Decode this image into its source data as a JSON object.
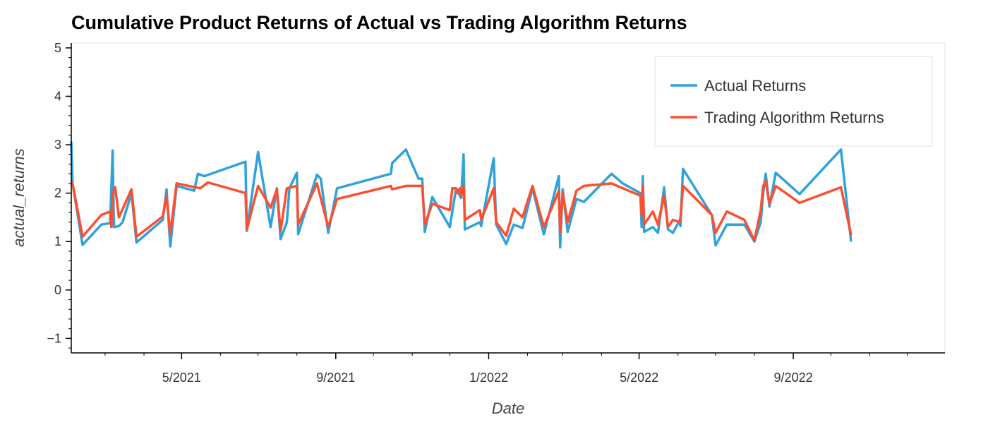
{
  "chart_data": {
    "type": "line",
    "title": "Cumulative Product Returns of Actual vs Trading Algorithm Returns",
    "xlabel": "Date",
    "ylabel": "actual_returns",
    "ylim": [
      -1.3,
      5.1
    ],
    "yticks": [
      -1,
      0,
      1,
      2,
      3,
      4,
      5
    ],
    "xlim": [
      "2021-02-02",
      "2022-12-31"
    ],
    "xticks": [
      {
        "date": "2021-05-01",
        "label": "5/2021"
      },
      {
        "date": "2021-09-01",
        "label": "9/2021"
      },
      {
        "date": "2022-01-01",
        "label": "1/2022"
      },
      {
        "date": "2022-05-01",
        "label": "5/2022"
      },
      {
        "date": "2022-09-01",
        "label": "9/2022"
      }
    ],
    "grid": false,
    "legend_position": "top-right",
    "series": [
      {
        "name": "Actual Returns",
        "color": "#30a2da",
        "points": [
          [
            "2021-02-02",
            3.05
          ],
          [
            "2021-02-03",
            2.2
          ],
          [
            "2021-02-11",
            0.93
          ],
          [
            "2021-02-26",
            1.35
          ],
          [
            "2021-03-05",
            1.38
          ],
          [
            "2021-03-07",
            2.88
          ],
          [
            "2021-03-08",
            1.3
          ],
          [
            "2021-03-12",
            1.32
          ],
          [
            "2021-03-15",
            1.4
          ],
          [
            "2021-03-22",
            2.0
          ],
          [
            "2021-03-26",
            0.98
          ],
          [
            "2021-04-16",
            1.45
          ],
          [
            "2021-04-19",
            2.08
          ],
          [
            "2021-04-22",
            0.9
          ],
          [
            "2021-04-27",
            2.15
          ],
          [
            "2021-05-11",
            2.05
          ],
          [
            "2021-05-14",
            2.4
          ],
          [
            "2021-05-19",
            2.35
          ],
          [
            "2021-06-21",
            2.65
          ],
          [
            "2021-06-22",
            1.22
          ],
          [
            "2021-07-01",
            2.85
          ],
          [
            "2021-07-11",
            1.3
          ],
          [
            "2021-07-16",
            2.1
          ],
          [
            "2021-07-19",
            1.05
          ],
          [
            "2021-07-24",
            1.4
          ],
          [
            "2021-07-26",
            2.1
          ],
          [
            "2021-08-01",
            2.42
          ],
          [
            "2021-08-02",
            1.15
          ],
          [
            "2021-08-17",
            2.38
          ],
          [
            "2021-08-20",
            2.3
          ],
          [
            "2021-08-26",
            1.18
          ],
          [
            "2021-09-02",
            2.1
          ],
          [
            "2021-10-15",
            2.4
          ],
          [
            "2021-10-16",
            2.62
          ],
          [
            "2021-10-27",
            2.9
          ],
          [
            "2021-11-06",
            2.3
          ],
          [
            "2021-11-09",
            2.3
          ],
          [
            "2021-11-11",
            1.2
          ],
          [
            "2021-11-17",
            1.92
          ],
          [
            "2021-12-01",
            1.3
          ],
          [
            "2021-12-06",
            2.1
          ],
          [
            "2021-12-09",
            1.95
          ],
          [
            "2021-12-10",
            1.9
          ],
          [
            "2021-12-12",
            2.8
          ],
          [
            "2021-12-13",
            1.25
          ],
          [
            "2021-12-25",
            1.4
          ],
          [
            "2021-12-26",
            1.32
          ],
          [
            "2022-01-05",
            2.72
          ],
          [
            "2022-01-07",
            1.35
          ],
          [
            "2022-01-15",
            0.95
          ],
          [
            "2022-01-21",
            1.35
          ],
          [
            "2022-01-28",
            1.28
          ],
          [
            "2022-02-05",
            2.1
          ],
          [
            "2022-02-14",
            1.15
          ],
          [
            "2022-02-26",
            2.35
          ],
          [
            "2022-02-27",
            0.88
          ],
          [
            "2022-03-01",
            2.08
          ],
          [
            "2022-03-05",
            1.2
          ],
          [
            "2022-03-12",
            1.88
          ],
          [
            "2022-03-18",
            1.82
          ],
          [
            "2022-04-09",
            2.4
          ],
          [
            "2022-04-18",
            2.2
          ],
          [
            "2022-05-02",
            2.0
          ],
          [
            "2022-05-03",
            1.3
          ],
          [
            "2022-05-04",
            2.35
          ],
          [
            "2022-05-05",
            1.2
          ],
          [
            "2022-05-12",
            1.3
          ],
          [
            "2022-05-16",
            1.18
          ],
          [
            "2022-05-21",
            2.12
          ],
          [
            "2022-05-24",
            1.25
          ],
          [
            "2022-05-28",
            1.18
          ],
          [
            "2022-06-02",
            1.42
          ],
          [
            "2022-06-03",
            1.32
          ],
          [
            "2022-06-05",
            2.5
          ],
          [
            "2022-06-28",
            1.55
          ],
          [
            "2022-07-01",
            0.92
          ],
          [
            "2022-07-10",
            1.35
          ],
          [
            "2022-07-24",
            1.35
          ],
          [
            "2022-08-01",
            1.0
          ],
          [
            "2022-08-06",
            1.4
          ],
          [
            "2022-08-08",
            2.0
          ],
          [
            "2022-08-10",
            2.4
          ],
          [
            "2022-08-13",
            1.72
          ],
          [
            "2022-08-18",
            2.42
          ],
          [
            "2022-09-06",
            1.98
          ],
          [
            "2022-10-09",
            2.9
          ],
          [
            "2022-10-17",
            1.02
          ]
        ]
      },
      {
        "name": "Trading Algorithm Returns",
        "color": "#fc4f30",
        "points": [
          [
            "2021-02-03",
            2.2
          ],
          [
            "2021-02-11",
            1.1
          ],
          [
            "2021-02-26",
            1.55
          ],
          [
            "2021-03-05",
            1.62
          ],
          [
            "2021-03-06",
            1.3
          ],
          [
            "2021-03-07",
            1.98
          ],
          [
            "2021-03-09",
            2.12
          ],
          [
            "2021-03-12",
            1.5
          ],
          [
            "2021-03-22",
            2.08
          ],
          [
            "2021-03-26",
            1.1
          ],
          [
            "2021-04-16",
            1.52
          ],
          [
            "2021-04-19",
            1.95
          ],
          [
            "2021-04-22",
            1.15
          ],
          [
            "2021-04-27",
            2.2
          ],
          [
            "2021-05-16",
            2.1
          ],
          [
            "2021-05-22",
            2.22
          ],
          [
            "2021-06-21",
            2.0
          ],
          [
            "2021-06-22",
            1.25
          ],
          [
            "2021-07-01",
            2.15
          ],
          [
            "2021-07-11",
            1.7
          ],
          [
            "2021-07-16",
            2.08
          ],
          [
            "2021-07-19",
            1.22
          ],
          [
            "2021-07-24",
            2.1
          ],
          [
            "2021-08-01",
            2.15
          ],
          [
            "2021-08-02",
            1.35
          ],
          [
            "2021-08-17",
            2.2
          ],
          [
            "2021-08-26",
            1.3
          ],
          [
            "2021-09-02",
            1.88
          ],
          [
            "2021-10-15",
            2.15
          ],
          [
            "2021-10-16",
            2.08
          ],
          [
            "2021-10-27",
            2.15
          ],
          [
            "2021-11-09",
            2.15
          ],
          [
            "2021-11-11",
            1.35
          ],
          [
            "2021-11-17",
            1.78
          ],
          [
            "2021-12-01",
            1.65
          ],
          [
            "2021-12-03",
            2.1
          ],
          [
            "2021-12-06",
            2.1
          ],
          [
            "2021-12-07",
            2.0
          ],
          [
            "2021-12-09",
            2.1
          ],
          [
            "2021-12-10",
            1.95
          ],
          [
            "2021-12-12",
            2.15
          ],
          [
            "2021-12-13",
            1.45
          ],
          [
            "2021-12-25",
            1.65
          ],
          [
            "2021-12-26",
            1.45
          ],
          [
            "2022-01-05",
            2.1
          ],
          [
            "2022-01-07",
            1.4
          ],
          [
            "2022-01-15",
            1.12
          ],
          [
            "2022-01-21",
            1.68
          ],
          [
            "2022-01-28",
            1.5
          ],
          [
            "2022-02-05",
            2.15
          ],
          [
            "2022-02-14",
            1.3
          ],
          [
            "2022-02-26",
            2.05
          ],
          [
            "2022-02-27",
            1.2
          ],
          [
            "2022-03-01",
            2.0
          ],
          [
            "2022-03-05",
            1.4
          ],
          [
            "2022-03-12",
            2.05
          ],
          [
            "2022-03-18",
            2.15
          ],
          [
            "2022-04-09",
            2.2
          ],
          [
            "2022-04-18",
            2.1
          ],
          [
            "2022-05-02",
            1.95
          ],
          [
            "2022-05-03",
            1.55
          ],
          [
            "2022-05-04",
            2.15
          ],
          [
            "2022-05-05",
            1.35
          ],
          [
            "2022-05-12",
            1.62
          ],
          [
            "2022-05-16",
            1.35
          ],
          [
            "2022-05-21",
            1.95
          ],
          [
            "2022-05-24",
            1.3
          ],
          [
            "2022-05-28",
            1.45
          ],
          [
            "2022-06-02",
            1.4
          ],
          [
            "2022-06-03",
            1.48
          ],
          [
            "2022-06-05",
            2.15
          ],
          [
            "2022-06-28",
            1.55
          ],
          [
            "2022-07-01",
            1.18
          ],
          [
            "2022-07-10",
            1.62
          ],
          [
            "2022-07-24",
            1.45
          ],
          [
            "2022-08-01",
            1.02
          ],
          [
            "2022-08-06",
            1.65
          ],
          [
            "2022-08-08",
            2.15
          ],
          [
            "2022-08-10",
            2.25
          ],
          [
            "2022-08-13",
            1.78
          ],
          [
            "2022-08-18",
            2.15
          ],
          [
            "2022-09-06",
            1.8
          ],
          [
            "2022-10-09",
            2.12
          ],
          [
            "2022-10-17",
            1.15
          ]
        ]
      }
    ]
  }
}
